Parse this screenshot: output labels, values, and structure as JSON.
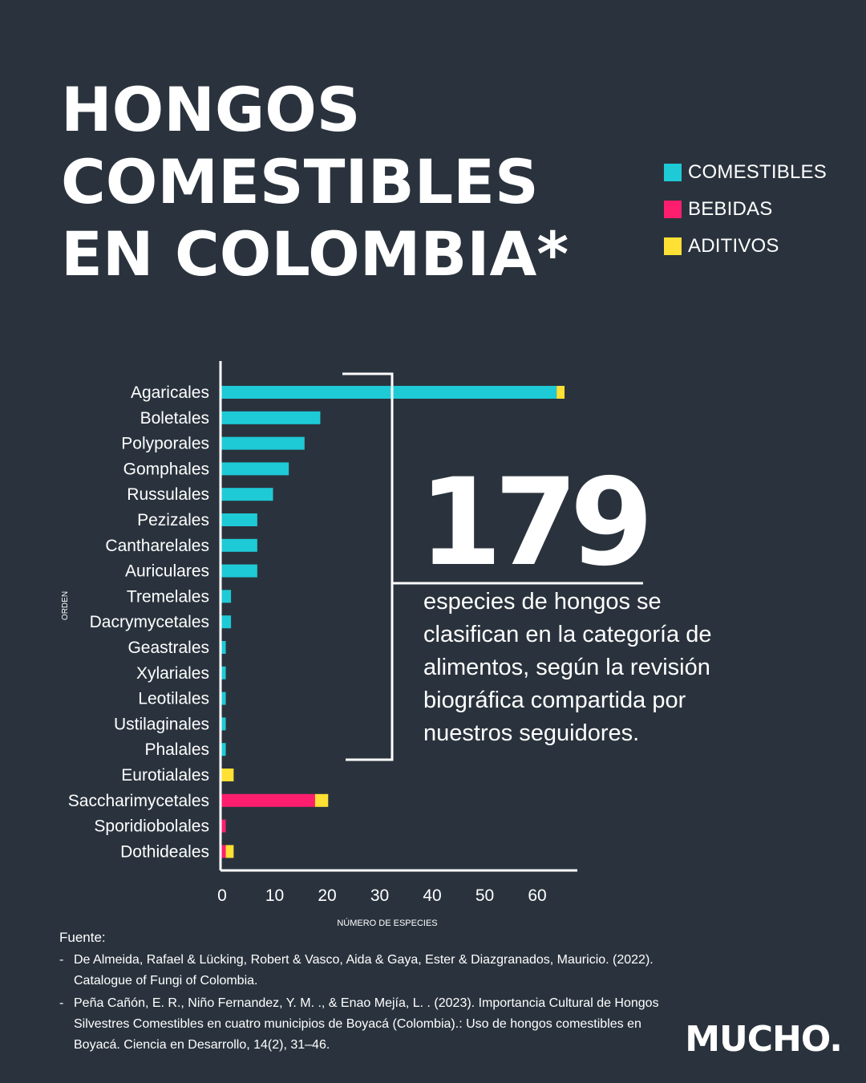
{
  "title": {
    "line1": "HONGOS",
    "line2": "COMESTIBLES",
    "line3": "EN COLOMBIA*"
  },
  "colors": {
    "background": "#2a333d",
    "comestibles": "#1ecad6",
    "bebidas": "#ff1e6e",
    "aditivos": "#ffe034",
    "text": "#ffffff"
  },
  "legend": [
    {
      "label": "COMESTIBLES",
      "color": "#1ecad6"
    },
    {
      "label": "BEBIDAS",
      "color": "#ff1e6e"
    },
    {
      "label": "ADITIVOS",
      "color": "#ffe034"
    }
  ],
  "stat": {
    "number": "179",
    "text": "especies de hongos se clasifican en la categoría de alimentos, según la revisión biográfica compartida por nuestros seguidores."
  },
  "chart_data": {
    "type": "bar",
    "orientation": "horizontal",
    "stacked": true,
    "ylabel": "ORDEN",
    "xlabel": "NÚMERO DE ESPECIES",
    "xlim": [
      0,
      68
    ],
    "xticks": [
      0,
      10,
      20,
      30,
      40,
      50,
      60
    ],
    "grid": false,
    "categories": [
      "Agaricales",
      "Boletales",
      "Polyporales",
      "Gomphales",
      "Russulales",
      "Pezizales",
      "Cantharelales",
      "Auriculares",
      "Tremelales",
      "Dacrymycetales",
      "Geastrales",
      "Xylariales",
      "Leotilales",
      "Ustilaginales",
      "Phalales",
      "Eurotialales",
      "Saccharimycetales",
      "Sporidiobolales",
      "Dothideales"
    ],
    "series": [
      {
        "name": "COMESTIBLES",
        "color": "#1ecad6",
        "values": [
          64,
          19,
          16,
          13,
          10,
          7,
          7,
          7,
          2,
          2,
          1,
          1,
          1,
          1,
          1,
          0,
          0,
          0,
          0
        ]
      },
      {
        "name": "BEBIDAS",
        "color": "#ff1e6e",
        "values": [
          0,
          0,
          0,
          0,
          0,
          0,
          0,
          0,
          0,
          0,
          0,
          0,
          0,
          0,
          0,
          0,
          18,
          1,
          1
        ]
      },
      {
        "name": "ADITIVOS",
        "color": "#ffe034",
        "values": [
          1.5,
          0,
          0,
          0,
          0,
          0,
          0,
          0,
          0,
          0,
          0,
          0,
          0,
          0,
          0,
          2.5,
          2.5,
          0,
          1.5
        ]
      }
    ]
  },
  "sources": {
    "heading": "Fuente:",
    "items": [
      "De Almeida, Rafael & Lücking, Robert & Vasco, Aida & Gaya, Ester & Diazgranados, Mauricio. (2022). Catalogue of Fungi of Colombia.",
      "Peña Cañón, E. R., Niño Fernandez, Y. M. ., & Enao Mejía, L. . (2023). Importancia Cultural de Hongos Silvestres Comestibles en cuatro municipios de Boyacá (Colombia).: Uso de hongos comestibles en Boyacá. Ciencia en Desarrollo, 14(2), 31–46."
    ]
  },
  "logo": "MUCHO."
}
